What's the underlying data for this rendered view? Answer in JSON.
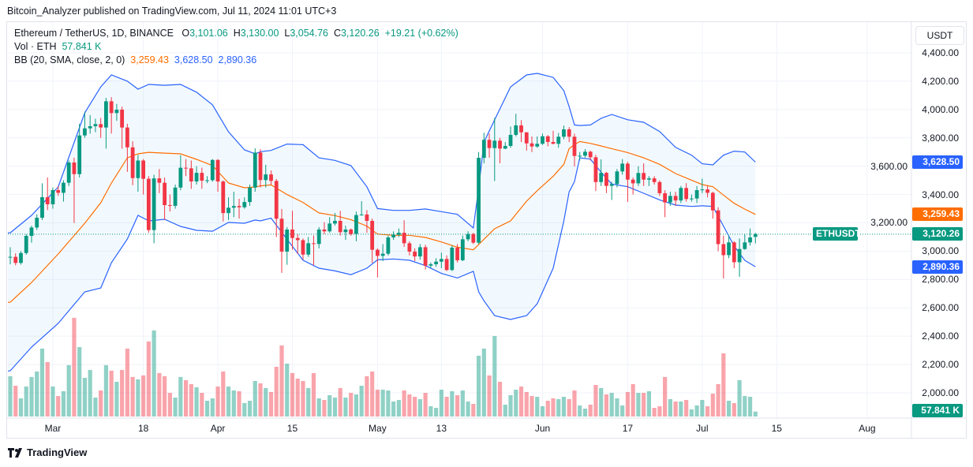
{
  "header": {
    "published": "Bitcoin_Analyzer published on TradingView.com, Jul 11, 2024 11:01 UTC+3"
  },
  "legend": {
    "symbol": "Ethereum / TetherUS, 1D, BINANCE",
    "o_label": "O",
    "o": "3,101.06",
    "h_label": "H",
    "h": "3,130.00",
    "l_label": "L",
    "l": "3,054.76",
    "c_label": "C",
    "c": "3,120.26",
    "change": "+19.21 (+0.62%)",
    "vol_label": "Vol · ETH",
    "vol": "57.841 K",
    "bb_label": "BB (20, SMA, close, 2, 0)",
    "bb_basis": "3,259.43",
    "bb_upper": "3,628.50",
    "bb_lower": "2,890.36"
  },
  "currency_button": "USDT",
  "brand": "TradingView",
  "colors": {
    "up": "#089981",
    "down": "#f23645",
    "bb_basis": "#ff6d00",
    "bb_band": "#2962ff",
    "grid": "#f0f3fa"
  },
  "chart_data": {
    "type": "candlestick",
    "title": "Ethereum / TetherUS, 1D, BINANCE",
    "start_date": "2024-02-22",
    "ylim": [
      1940,
      4480
    ],
    "grid": true,
    "yticks": [
      "4,400.00",
      "4,200.00",
      "4,000.00",
      "3,800.00",
      "3,600.00",
      "3,400.00",
      "3,200.00",
      "3,000.00",
      "2,800.00",
      "2,600.00",
      "2,400.00",
      "2,200.00",
      "2,000.00"
    ],
    "ytick_values": [
      4400,
      4200,
      4000,
      3800,
      3600,
      3400,
      3200,
      3000,
      2800,
      2600,
      2400,
      2200,
      2000
    ],
    "xticks": [
      {
        "label": "Mar",
        "day_index": 8
      },
      {
        "label": "18",
        "day_index": 25
      },
      {
        "label": "Apr",
        "day_index": 39
      },
      {
        "label": "15",
        "day_index": 53
      },
      {
        "label": "May",
        "day_index": 69
      },
      {
        "label": "13",
        "day_index": 81
      },
      {
        "label": "Jun",
        "day_index": 100
      },
      {
        "label": "17",
        "day_index": 116
      },
      {
        "label": "Jul",
        "day_index": 130
      },
      {
        "label": "15",
        "day_index": 144
      },
      {
        "label": "Aug",
        "day_index": 161
      }
    ],
    "price_tags": {
      "symbol": "ETHUSDT",
      "last": {
        "label": "3,120.26",
        "value": 3120.26
      },
      "bb_upper": {
        "label": "3,628.50",
        "value": 3628.5
      },
      "bb_basis": {
        "label": "3,259.43",
        "value": 3259.43
      },
      "bb_lower": {
        "label": "2,890.36",
        "value": 2890.36
      },
      "volume": {
        "label": "57.841 K"
      }
    },
    "ohlc": [
      [
        2955,
        3028,
        2907,
        2960
      ],
      [
        2960,
        2985,
        2900,
        2917
      ],
      [
        2917,
        3000,
        2905,
        2987
      ],
      [
        2987,
        3120,
        2975,
        3108
      ],
      [
        3108,
        3180,
        3060,
        3167
      ],
      [
        3167,
        3260,
        3150,
        3236
      ],
      [
        3236,
        3479,
        3220,
        3381
      ],
      [
        3381,
        3520,
        3290,
        3331
      ],
      [
        3331,
        3450,
        3300,
        3431
      ],
      [
        3431,
        3460,
        3390,
        3412
      ],
      [
        3412,
        3500,
        3350,
        3483
      ],
      [
        3483,
        3640,
        3460,
        3626
      ],
      [
        3626,
        3660,
        3199,
        3544
      ],
      [
        3544,
        3900,
        3520,
        3817
      ],
      [
        3817,
        3985,
        3800,
        3867
      ],
      [
        3867,
        3960,
        3830,
        3882
      ],
      [
        3882,
        3935,
        3840,
        3897
      ],
      [
        3897,
        3940,
        3800,
        3873
      ],
      [
        3873,
        4082,
        3724,
        4058
      ],
      [
        4058,
        4087,
        3830,
        3975
      ],
      [
        3975,
        4040,
        3920,
        3999
      ],
      [
        3999,
        4020,
        3723,
        3873
      ],
      [
        3873,
        3900,
        3560,
        3733
      ],
      [
        3733,
        3776,
        3466,
        3516
      ],
      [
        3516,
        3680,
        3420,
        3640
      ],
      [
        3640,
        3650,
        3400,
        3511
      ],
      [
        3511,
        3530,
        3130,
        3149
      ],
      [
        3149,
        3540,
        3056,
        3514
      ],
      [
        3514,
        3580,
        3410,
        3483
      ],
      [
        3483,
        3520,
        3220,
        3325
      ],
      [
        3325,
        3400,
        3280,
        3320
      ],
      [
        3320,
        3470,
        3300,
        3449
      ],
      [
        3449,
        3677,
        3430,
        3589
      ],
      [
        3589,
        3650,
        3530,
        3585
      ],
      [
        3585,
        3640,
        3440,
        3492
      ],
      [
        3492,
        3600,
        3470,
        3553
      ],
      [
        3553,
        3590,
        3440,
        3498
      ],
      [
        3498,
        3530,
        3480,
        3501
      ],
      [
        3501,
        3650,
        3490,
        3644
      ],
      [
        3644,
        3650,
        3420,
        3492
      ],
      [
        3492,
        3500,
        3210,
        3269
      ],
      [
        3269,
        3380,
        3220,
        3307
      ],
      [
        3307,
        3420,
        3240,
        3319
      ],
      [
        3319,
        3370,
        3230,
        3310
      ],
      [
        3310,
        3380,
        3300,
        3347
      ],
      [
        3347,
        3470,
        3320,
        3449
      ],
      [
        3449,
        3726,
        3420,
        3696
      ],
      [
        3696,
        3720,
        3450,
        3502
      ],
      [
        3502,
        3610,
        3450,
        3542
      ],
      [
        3542,
        3570,
        3470,
        3496
      ],
      [
        3496,
        3510,
        3100,
        3229
      ],
      [
        3229,
        3298,
        2847,
        2997
      ],
      [
        2997,
        3170,
        2904,
        3153
      ],
      [
        3153,
        3285,
        3010,
        3093
      ],
      [
        3093,
        3120,
        2980,
        3078
      ],
      [
        3078,
        3090,
        2940,
        2976
      ],
      [
        2976,
        3100,
        2960,
        3056
      ],
      [
        3056,
        3110,
        2900,
        3051
      ],
      [
        3051,
        3170,
        3020,
        3153
      ],
      [
        3153,
        3205,
        3120,
        3140
      ],
      [
        3140,
        3240,
        3130,
        3195
      ],
      [
        3195,
        3270,
        3180,
        3214
      ],
      [
        3214,
        3285,
        3110,
        3134
      ],
      [
        3134,
        3180,
        3080,
        3153
      ],
      [
        3153,
        3160,
        3110,
        3121
      ],
      [
        3121,
        3280,
        3070,
        3255
      ],
      [
        3255,
        3353,
        3250,
        3259
      ],
      [
        3259,
        3290,
        3130,
        3214
      ],
      [
        3214,
        3230,
        2917,
        3010
      ],
      [
        3010,
        3020,
        2815,
        2967
      ],
      [
        2967,
        3050,
        2930,
        2982
      ],
      [
        2982,
        3110,
        2970,
        3097
      ],
      [
        3097,
        3140,
        3080,
        3116
      ],
      [
        3116,
        3160,
        3100,
        3130
      ],
      [
        3130,
        3218,
        3030,
        3056
      ],
      [
        3056,
        3070,
        2970,
        2997
      ],
      [
        2997,
        3020,
        2930,
        2963
      ],
      [
        2963,
        3050,
        2940,
        3028
      ],
      [
        3028,
        3045,
        2870,
        2898
      ],
      [
        2898,
        2920,
        2880,
        2908
      ],
      [
        2908,
        2950,
        2890,
        2926
      ],
      [
        2926,
        2990,
        2880,
        2945
      ],
      [
        2945,
        2970,
        2860,
        2867
      ],
      [
        2867,
        3040,
        2860,
        3025
      ],
      [
        3025,
        3050,
        2920,
        2936
      ],
      [
        2936,
        3110,
        2930,
        3084
      ],
      [
        3084,
        3140,
        3070,
        3121
      ],
      [
        3121,
        3130,
        3050,
        3060
      ],
      [
        3060,
        3700,
        3050,
        3659
      ],
      [
        3659,
        3836,
        3620,
        3786
      ],
      [
        3786,
        3830,
        3660,
        3728
      ],
      [
        3728,
        3942,
        3495,
        3780
      ],
      [
        3780,
        3800,
        3620,
        3724
      ],
      [
        3724,
        3770,
        3720,
        3743
      ],
      [
        3743,
        3880,
        3730,
        3821
      ],
      [
        3821,
        3970,
        3810,
        3888
      ],
      [
        3888,
        3925,
        3770,
        3839
      ],
      [
        3839,
        3840,
        3710,
        3761
      ],
      [
        3761,
        3810,
        3700,
        3739
      ],
      [
        3739,
        3810,
        3730,
        3758
      ],
      [
        3758,
        3830,
        3750,
        3811
      ],
      [
        3811,
        3820,
        3740,
        3771
      ],
      [
        3771,
        3850,
        3755,
        3758
      ],
      [
        3758,
        3835,
        3730,
        3808
      ],
      [
        3808,
        3887,
        3790,
        3860
      ],
      [
        3860,
        3875,
        3770,
        3808
      ],
      [
        3808,
        3830,
        3598,
        3672
      ],
      [
        3672,
        3700,
        3640,
        3674
      ],
      [
        3674,
        3720,
        3660,
        3702
      ],
      [
        3702,
        3710,
        3640,
        3663
      ],
      [
        3663,
        3680,
        3425,
        3488
      ],
      [
        3488,
        3648,
        3460,
        3553
      ],
      [
        3553,
        3560,
        3410,
        3461
      ],
      [
        3461,
        3490,
        3362,
        3474
      ],
      [
        3474,
        3580,
        3450,
        3563
      ],
      [
        3563,
        3650,
        3540,
        3618
      ],
      [
        3618,
        3630,
        3348,
        3505
      ],
      [
        3505,
        3520,
        3400,
        3479
      ],
      [
        3479,
        3600,
        3460,
        3552
      ],
      [
        3552,
        3620,
        3460,
        3505
      ],
      [
        3505,
        3530,
        3460,
        3514
      ],
      [
        3514,
        3530,
        3470,
        3488
      ],
      [
        3488,
        3500,
        3390,
        3409
      ],
      [
        3409,
        3430,
        3240,
        3344
      ],
      [
        3344,
        3420,
        3320,
        3390
      ],
      [
        3390,
        3420,
        3320,
        3358
      ],
      [
        3358,
        3460,
        3340,
        3446
      ],
      [
        3446,
        3480,
        3350,
        3368
      ],
      [
        3368,
        3400,
        3350,
        3372
      ],
      [
        3372,
        3460,
        3340,
        3431
      ],
      [
        3431,
        3512,
        3410,
        3436
      ],
      [
        3436,
        3460,
        3380,
        3412
      ],
      [
        3412,
        3420,
        3230,
        3288
      ],
      [
        3288,
        3310,
        3000,
        3050
      ],
      [
        3050,
        3110,
        2807,
        2972
      ],
      [
        2972,
        3110,
        2950,
        3062
      ],
      [
        3062,
        3070,
        2880,
        2922
      ],
      [
        2922,
        3090,
        2819,
        3015
      ],
      [
        3015,
        3120,
        3010,
        3062
      ],
      [
        3062,
        3160,
        3040,
        3097
      ],
      [
        3101.06,
        3130,
        3054.76,
        3120.26
      ]
    ],
    "volume_k": [
      470,
      359,
      212,
      350,
      461,
      525,
      792,
      635,
      350,
      239,
      295,
      599,
      1151,
      810,
      451,
      543,
      221,
      304,
      599,
      534,
      405,
      543,
      792,
      461,
      433,
      479,
      875,
      1004,
      507,
      470,
      276,
      221,
      461,
      424,
      378,
      341,
      276,
      184,
      212,
      350,
      525,
      350,
      304,
      295,
      157,
      184,
      414,
      387,
      332,
      286,
      580,
      829,
      617,
      507,
      442,
      414,
      332,
      507,
      212,
      193,
      249,
      221,
      332,
      221,
      276,
      258,
      359,
      470,
      525,
      313,
      313,
      304,
      175,
      193,
      304,
      258,
      230,
      203,
      276,
      120,
      101,
      313,
      230,
      295,
      249,
      304,
      175,
      147,
      709,
      792,
      479,
      939,
      405,
      138,
      249,
      313,
      350,
      286,
      239,
      230,
      120,
      184,
      212,
      203,
      230,
      203,
      304,
      129,
      92,
      138,
      368,
      332,
      258,
      276,
      212,
      129,
      286,
      378,
      276,
      276,
      295,
      101,
      120,
      461,
      203,
      175,
      175,
      193,
      83,
      129,
      193,
      120,
      267,
      378,
      737,
      184,
      157,
      424,
      239,
      230,
      57.841
    ],
    "bollinger": {
      "params": "20, SMA, close, 2, 0",
      "points_day_upper_basis_lower": [
        [
          -3,
          3125,
          2629,
          2139
        ],
        [
          0,
          3130,
          2640,
          2156
        ],
        [
          4,
          3253,
          2779,
          2323
        ],
        [
          9,
          3453,
          2980,
          2490
        ],
        [
          14,
          3977,
          3197,
          2713
        ],
        [
          17,
          4160,
          3342,
          2740
        ],
        [
          19,
          4244,
          3481,
          2919
        ],
        [
          22,
          4200,
          3659,
          3086
        ],
        [
          24,
          4144,
          3687,
          3253
        ],
        [
          26,
          4177,
          3698,
          3214
        ],
        [
          29,
          4171,
          3692,
          3225
        ],
        [
          32,
          4177,
          3687,
          3175
        ],
        [
          35,
          4122,
          3648,
          3147
        ],
        [
          38,
          4033,
          3604,
          3141
        ],
        [
          41,
          3843,
          3481,
          3203
        ],
        [
          44,
          3715,
          3448,
          3197
        ],
        [
          46,
          3687,
          3453,
          3220
        ],
        [
          47,
          3702,
          3461,
          3214
        ],
        [
          49,
          3711,
          3468,
          3233
        ],
        [
          52,
          3756,
          3400,
          3084
        ],
        [
          55,
          3752,
          3344,
          2936
        ],
        [
          58,
          3659,
          3270,
          2880
        ],
        [
          61,
          3641,
          3251,
          2861
        ],
        [
          64,
          3604,
          3223,
          2834
        ],
        [
          67,
          3455,
          3177,
          2880
        ],
        [
          69,
          3301,
          3121,
          2939
        ],
        [
          72,
          3288,
          3112,
          2945
        ],
        [
          75,
          3288,
          3112,
          2936
        ],
        [
          78,
          3298,
          3097,
          2898
        ],
        [
          81,
          3279,
          3065,
          2843
        ],
        [
          84,
          3260,
          3028,
          2811
        ],
        [
          87,
          3164,
          3010,
          2858
        ],
        [
          88,
          3446,
          3047,
          2713
        ],
        [
          89,
          3770,
          3084,
          2650
        ],
        [
          91,
          3927,
          3158,
          2545
        ],
        [
          94,
          4160,
          3214,
          2518
        ],
        [
          97,
          4244,
          3353,
          2545
        ],
        [
          99,
          4255,
          3427,
          2629
        ],
        [
          102,
          4227,
          3529,
          2880
        ],
        [
          104,
          4133,
          3613,
          3214
        ],
        [
          105,
          4021,
          3724,
          3418
        ],
        [
          106,
          3891,
          3752,
          3492
        ],
        [
          107,
          3887,
          3774,
          3659
        ],
        [
          109,
          3891,
          3761,
          3650
        ],
        [
          111,
          3938,
          3743,
          3557
        ],
        [
          113,
          3965,
          3724,
          3474
        ],
        [
          116,
          3928,
          3696,
          3455
        ],
        [
          119,
          3910,
          3659,
          3409
        ],
        [
          122,
          3845,
          3613,
          3362
        ],
        [
          125,
          3733,
          3548,
          3325
        ],
        [
          128,
          3678,
          3501,
          3316
        ],
        [
          130,
          3617,
          3470,
          3320
        ],
        [
          132,
          3609,
          3455,
          3316
        ],
        [
          134,
          3678,
          3396,
          3177
        ],
        [
          136,
          3706,
          3338,
          3037
        ],
        [
          138,
          3700,
          3297,
          2935
        ],
        [
          140,
          3628.5,
          3259.43,
          2890.36
        ]
      ]
    }
  }
}
